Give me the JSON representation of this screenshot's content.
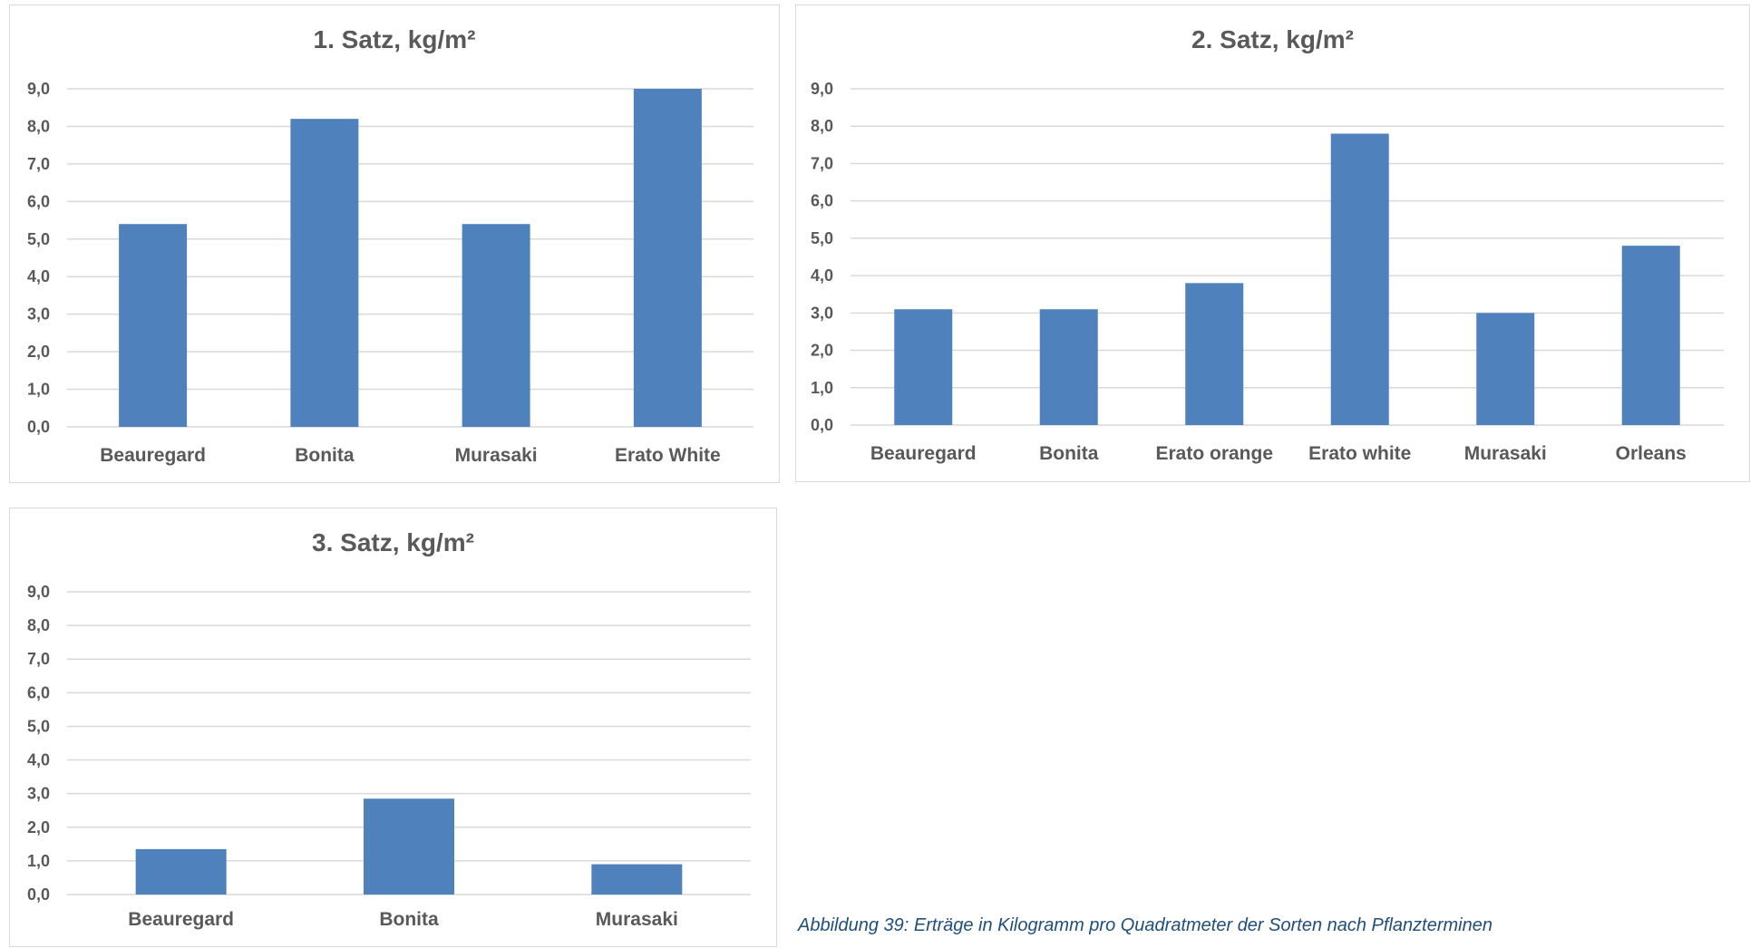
{
  "chart_data": [
    {
      "type": "bar",
      "title": "1. Satz, kg/m²",
      "categories": [
        "Beauregard",
        "Bonita",
        "Murasaki",
        "Erato White"
      ],
      "values": [
        5.4,
        8.2,
        5.4,
        9.0
      ],
      "ylim": [
        0,
        9
      ],
      "yticks": [
        "0,0",
        "1,0",
        "2,0",
        "3,0",
        "4,0",
        "5,0",
        "6,0",
        "7,0",
        "8,0",
        "9,0"
      ],
      "grid": true,
      "bar_color": "#4f81bd"
    },
    {
      "type": "bar",
      "title": "2. Satz, kg/m²",
      "categories": [
        "Beauregard",
        "Bonita",
        "Erato orange",
        "Erato white",
        "Murasaki",
        "Orleans"
      ],
      "values": [
        3.1,
        3.1,
        3.8,
        7.8,
        3.0,
        4.8
      ],
      "ylim": [
        0,
        9
      ],
      "yticks": [
        "0,0",
        "1,0",
        "2,0",
        "3,0",
        "4,0",
        "5,0",
        "6,0",
        "7,0",
        "8,0",
        "9,0"
      ],
      "grid": true,
      "bar_color": "#4f81bd"
    },
    {
      "type": "bar",
      "title": "3. Satz, kg/m²",
      "categories": [
        "Beauregard",
        "Bonita",
        "Murasaki"
      ],
      "values": [
        1.35,
        2.85,
        0.9
      ],
      "ylim": [
        0,
        9
      ],
      "yticks": [
        "0,0",
        "1,0",
        "2,0",
        "3,0",
        "4,0",
        "5,0",
        "6,0",
        "7,0",
        "8,0",
        "9,0"
      ],
      "grid": true,
      "bar_color": "#4f81bd"
    }
  ],
  "caption": "Abbildung 39: Erträge in Kilogramm pro Quadratmeter der Sorten nach Pflanzterminen"
}
